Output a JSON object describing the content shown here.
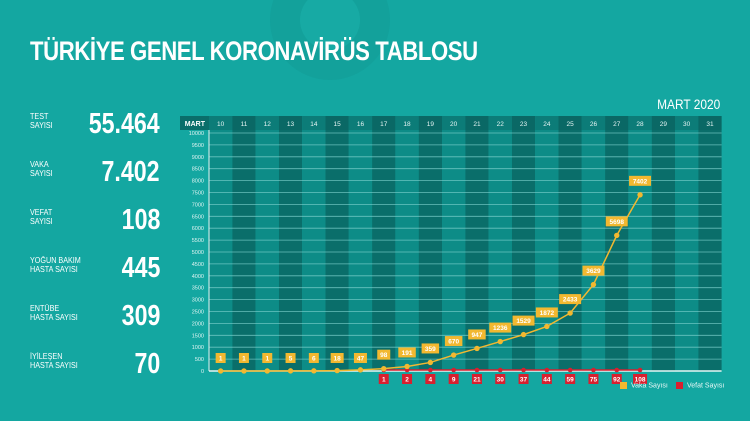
{
  "header": {
    "title": "TÜRKİYE GENEL KORONAVİRÜS TABLOSU",
    "month": "MART 2020"
  },
  "stats": [
    {
      "label": "TEST\nSAYISI",
      "value": "55.464"
    },
    {
      "label": "VAKA\nSAYISI",
      "value": "7.402"
    },
    {
      "label": "VEFAT\nSAYISI",
      "value": "108"
    },
    {
      "label": "YOĞUN BAKIM\nHASTA SAYISI",
      "value": "445"
    },
    {
      "label": "ENTÜBE\nHASTA SAYISI",
      "value": "309"
    },
    {
      "label": "İYİLEŞEN\nHASTA SAYISI",
      "value": "70"
    }
  ],
  "legend": {
    "vaka": "Vaka Sayısı",
    "vefat": "Vefat Sayısı"
  },
  "colors": {
    "background": "#14a7a1",
    "col_light": "#0d8c87",
    "col_dark": "#0a6e6a",
    "vaka": "#f2b830",
    "vefat": "#d8202f"
  },
  "chart_data": {
    "type": "line",
    "title": "TÜRKİYE GENEL KORONAVİRÜS TABLOSU",
    "subtitle": "MART 2020",
    "xlabel": "MART",
    "ylabel": "",
    "categories": [
      "10",
      "11",
      "12",
      "13",
      "14",
      "15",
      "16",
      "17",
      "18",
      "19",
      "20",
      "21",
      "22",
      "23",
      "24",
      "25",
      "26",
      "27",
      "28",
      "29",
      "30",
      "31"
    ],
    "yticks": [
      0,
      500,
      1000,
      1500,
      2000,
      2500,
      3000,
      3500,
      4000,
      4500,
      5000,
      5500,
      6000,
      6500,
      7000,
      7500,
      8000,
      8500,
      9000,
      9500,
      10000
    ],
    "ylim": [
      0,
      10000
    ],
    "grid": true,
    "legend_position": "bottom-right",
    "series": [
      {
        "name": "Vaka Sayısı",
        "color": "#f2b830",
        "values": [
          1,
          1,
          1,
          5,
          6,
          18,
          47,
          98,
          191,
          359,
          670,
          947,
          1236,
          1529,
          1872,
          2433,
          3629,
          5698,
          7402,
          null,
          null,
          null
        ]
      },
      {
        "name": "Vefat Sayısı",
        "color": "#d8202f",
        "values": [
          null,
          null,
          null,
          null,
          null,
          null,
          null,
          1,
          2,
          4,
          9,
          21,
          30,
          37,
          44,
          59,
          75,
          92,
          108,
          null,
          null,
          null
        ]
      }
    ]
  }
}
